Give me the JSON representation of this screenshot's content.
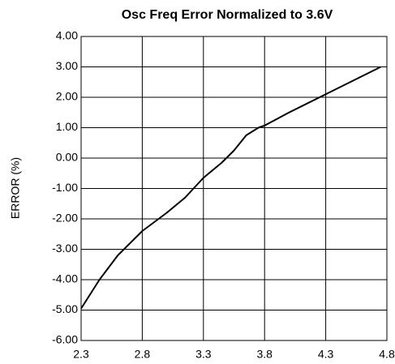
{
  "chart_data": {
    "type": "line",
    "title": "Osc Freq Error Normalized to 3.6V",
    "y_label": "ERROR (%)",
    "x": [
      2.3,
      2.45,
      2.6,
      2.8,
      3.0,
      3.15,
      3.3,
      3.45,
      3.55,
      3.65,
      3.75,
      3.8,
      4.0,
      4.3,
      4.5,
      4.75
    ],
    "series": [
      {
        "name": "Error",
        "color": "#000000",
        "values": [
          -4.95,
          -4.0,
          -3.2,
          -2.4,
          -1.8,
          -1.3,
          -0.65,
          -0.15,
          0.25,
          0.75,
          1.0,
          1.07,
          1.5,
          2.1,
          2.5,
          3.0
        ]
      }
    ],
    "xlim": [
      2.3,
      4.8
    ],
    "xticks": [
      2.3,
      2.8,
      3.3,
      3.8,
      4.3,
      4.8
    ],
    "ylim": [
      -6,
      4
    ],
    "yticks": [
      {
        "value": -6,
        "label": "-6.00"
      },
      {
        "value": -5,
        "label": "-5.00"
      },
      {
        "value": -4,
        "label": "-4.00"
      },
      {
        "value": -3,
        "label": "-3.00"
      },
      {
        "value": -2,
        "label": "-2.00"
      },
      {
        "value": -1,
        "label": "-1.00"
      },
      {
        "value": 0,
        "label": "0.00"
      },
      {
        "value": 1,
        "label": "1.00"
      },
      {
        "value": 2,
        "label": "2.00"
      },
      {
        "value": 3,
        "label": "3.00"
      },
      {
        "value": 4,
        "label": "4.00"
      }
    ],
    "grid": true
  }
}
